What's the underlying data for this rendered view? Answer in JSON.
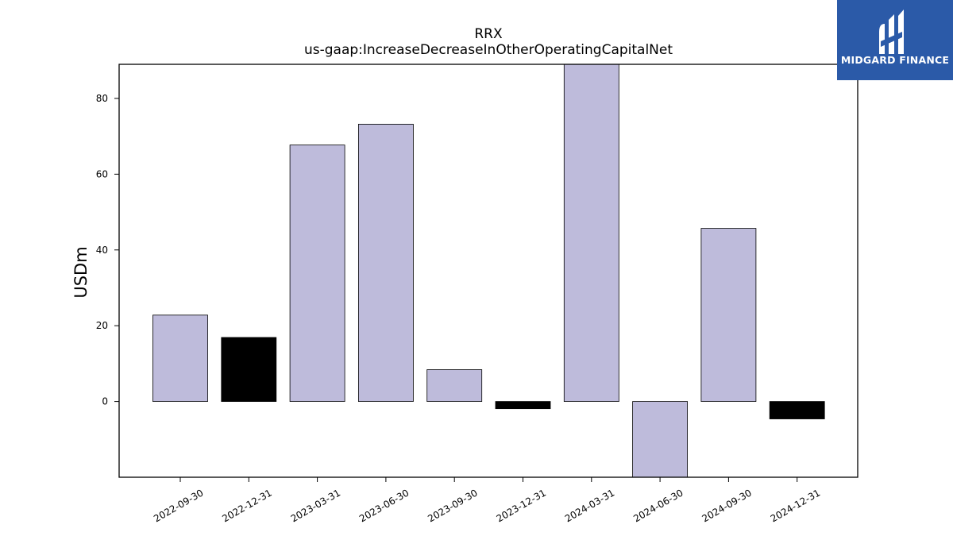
{
  "brand": {
    "name": "MIDGARD FINANCE",
    "logo_icon": "midgard-logo-icon",
    "background": "#2b5aa8"
  },
  "chart_data": {
    "type": "bar",
    "title": "RRX",
    "subtitle": "us-gaap:IncreaseDecreaseInOtherOperatingCapitalNet",
    "xlabel": "",
    "ylabel": "USDm",
    "categories": [
      "2022-09-30",
      "2022-12-31",
      "2023-03-31",
      "2023-06-30",
      "2023-09-30",
      "2023-12-31",
      "2024-03-31",
      "2024-06-30",
      "2024-09-30",
      "2024-12-31"
    ],
    "values": [
      22.8,
      16.9,
      67.7,
      73.2,
      8.4,
      -1.9,
      89.0,
      -20.0,
      45.7,
      -4.6
    ],
    "bar_colors": [
      "#bebbdb",
      "#000000",
      "#bebbdb",
      "#bebbdb",
      "#bebbdb",
      "#000000",
      "#bebbdb",
      "#bebbdb",
      "#bebbdb",
      "#000000"
    ],
    "ylim": [
      -20,
      89
    ],
    "yticks": [
      0,
      20,
      40,
      60,
      80
    ],
    "grid": false,
    "legend": "none"
  }
}
